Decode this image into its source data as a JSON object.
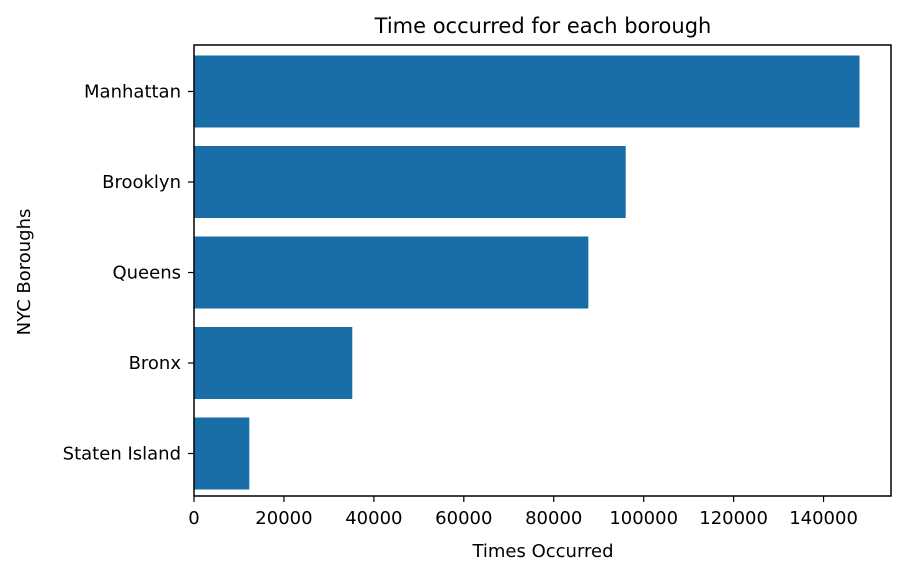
{
  "chart_data": {
    "type": "bar",
    "orientation": "horizontal",
    "title": "Time occurred for each borough",
    "xlabel": "Times Occurred",
    "ylabel": "NYC Boroughs",
    "categories": [
      "Manhattan",
      "Brooklyn",
      "Queens",
      "Bronx",
      "Staten Island"
    ],
    "values": [
      148000,
      96000,
      87700,
      35200,
      12300
    ],
    "xlim": [
      0,
      155000
    ],
    "xticks": [
      0,
      20000,
      40000,
      60000,
      80000,
      100000,
      120000,
      140000
    ],
    "grid": false,
    "color": "#1a6ea8"
  }
}
